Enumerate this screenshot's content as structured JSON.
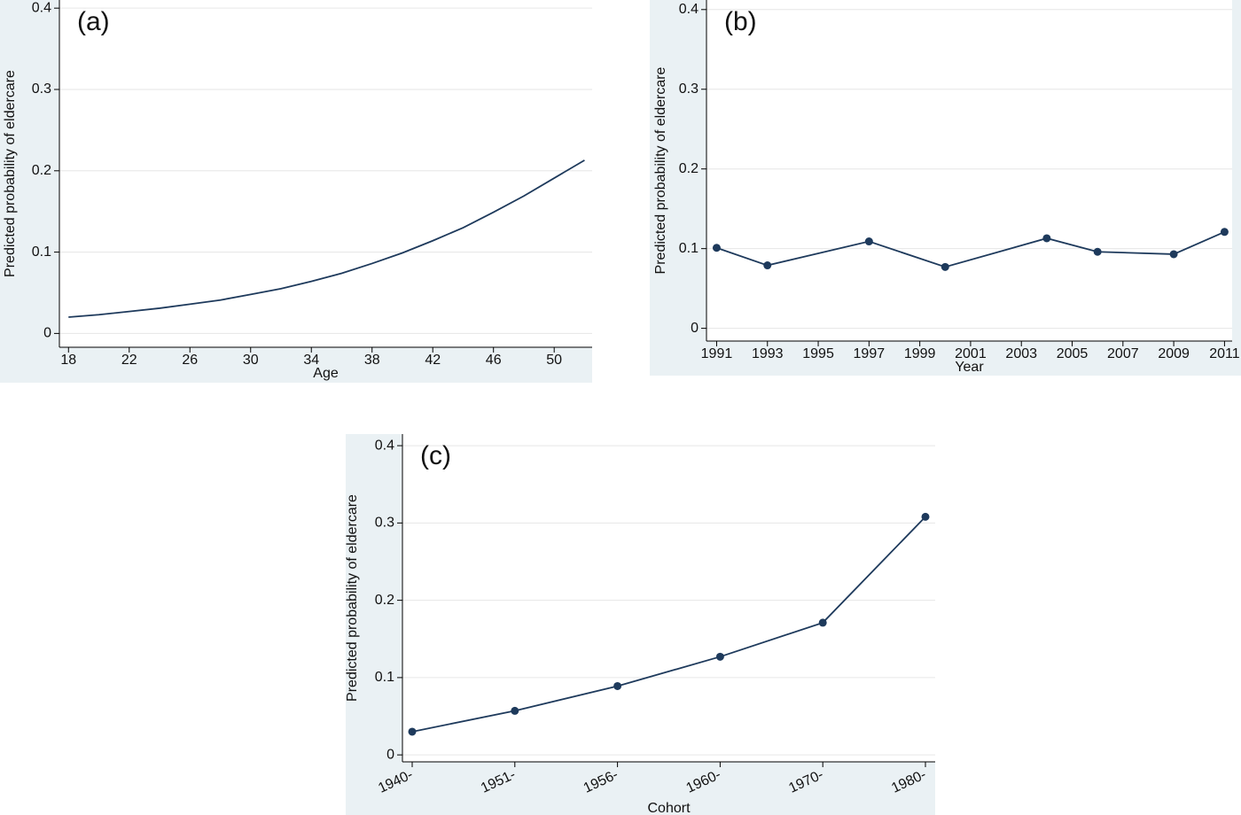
{
  "chart_data": [
    {
      "type": "line",
      "label": "(a)",
      "x_label": "Age",
      "y_label": "Predicted probability of eldercare",
      "x": [
        18,
        20,
        22,
        24,
        26,
        28,
        30,
        32,
        34,
        36,
        38,
        40,
        42,
        44,
        46,
        48,
        50,
        52
      ],
      "series": [
        {
          "color": "#1e3a5c",
          "values": [
            0.02,
            0.023,
            0.027,
            0.031,
            0.036,
            0.041,
            0.048,
            0.055,
            0.064,
            0.074,
            0.086,
            0.099,
            0.114,
            0.13,
            0.149,
            0.169,
            0.191,
            0.213
          ]
        }
      ],
      "markers": false,
      "xlim": [
        17.4,
        52.5
      ],
      "xticks": [
        18,
        22,
        26,
        30,
        34,
        38,
        42,
        46,
        50
      ],
      "ylim": [
        -0.017,
        0.41
      ],
      "yticks": [
        0,
        0.1,
        0.2,
        0.3,
        0.4
      ],
      "grid": true
    },
    {
      "type": "line",
      "label": "(b)",
      "x_label": "Year",
      "y_label": "Predicted probability of eldercare",
      "x": [
        1991,
        1993,
        1997,
        2000,
        2004,
        2006,
        2009,
        2011
      ],
      "series": [
        {
          "color": "#1e3a5c",
          "values": [
            0.101,
            0.079,
            0.109,
            0.077,
            0.113,
            0.096,
            0.093,
            0.121
          ]
        }
      ],
      "markers": true,
      "xlim": [
        1990.6,
        2011.3
      ],
      "xticks": [
        1991,
        1993,
        1995,
        1997,
        1999,
        2001,
        2003,
        2005,
        2007,
        2009,
        2011
      ],
      "ylim": [
        -0.016,
        0.412
      ],
      "yticks": [
        0,
        0.1,
        0.2,
        0.3,
        0.4
      ],
      "grid": true
    },
    {
      "type": "line",
      "label": "(c)",
      "x_label": "Cohort",
      "y_label": "Predicted probability of eldercare",
      "categories": [
        "1940-",
        "1951-",
        "1956-",
        "1960-",
        "1970-",
        "1980-"
      ],
      "series": [
        {
          "color": "#1e3a5c",
          "values": [
            0.03,
            0.057,
            0.089,
            0.127,
            0.171,
            0.308
          ]
        }
      ],
      "markers": true,
      "ylim": [
        -0.009,
        0.415
      ],
      "yticks": [
        0,
        0.1,
        0.2,
        0.3,
        0.4
      ],
      "grid": true
    }
  ]
}
